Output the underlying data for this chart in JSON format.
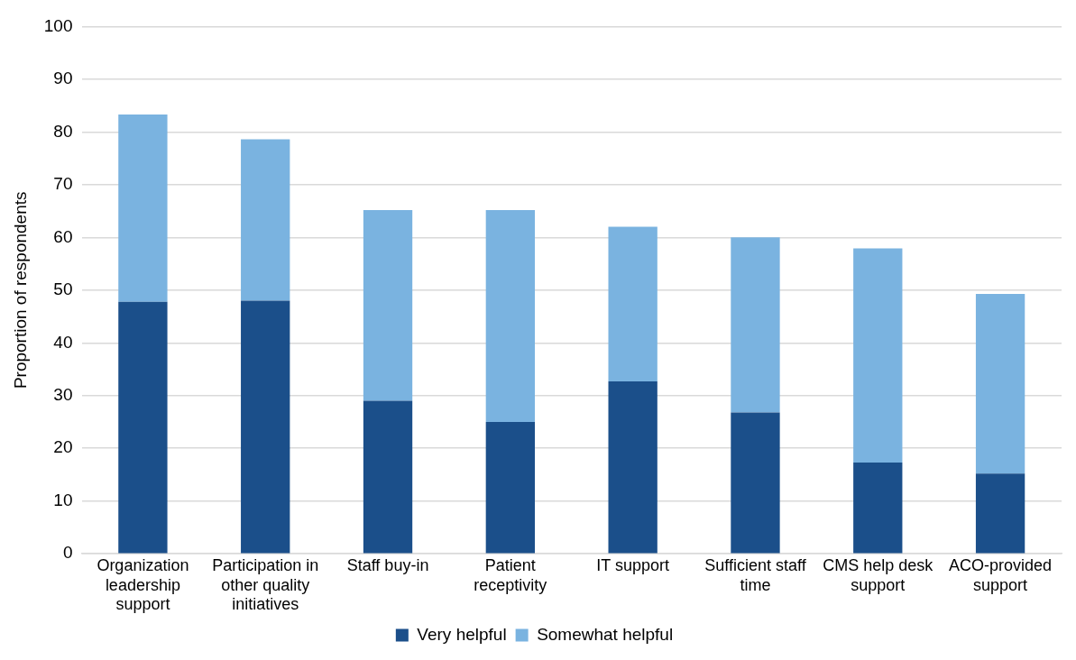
{
  "chart_data": {
    "type": "bar",
    "stacked": true,
    "ylabel": "Proportion of respondents",
    "categories": [
      "Organization leadership support",
      "Participation in other quality initiatives",
      "Staff buy-in",
      "Patient receptivity",
      "IT support",
      "Sufficient staff time",
      "CMS help desk support",
      "ACO-provided support"
    ],
    "series": [
      {
        "name": "Very helpful",
        "color": "#1b4f8a",
        "values": [
          47.8,
          48,
          29,
          25,
          32.7,
          26.8,
          17.3,
          15.2
        ]
      },
      {
        "name": "Somewhat helpful",
        "color": "#7ab3e0",
        "values": [
          35.5,
          30.6,
          36.2,
          40.2,
          29.3,
          33.2,
          40.6,
          34.1
        ]
      }
    ],
    "ylim": [
      0,
      100
    ],
    "yticks": [
      0,
      10,
      20,
      30,
      40,
      50,
      60,
      70,
      80,
      90,
      100
    ],
    "grid": "y",
    "legend": "bottom"
  }
}
